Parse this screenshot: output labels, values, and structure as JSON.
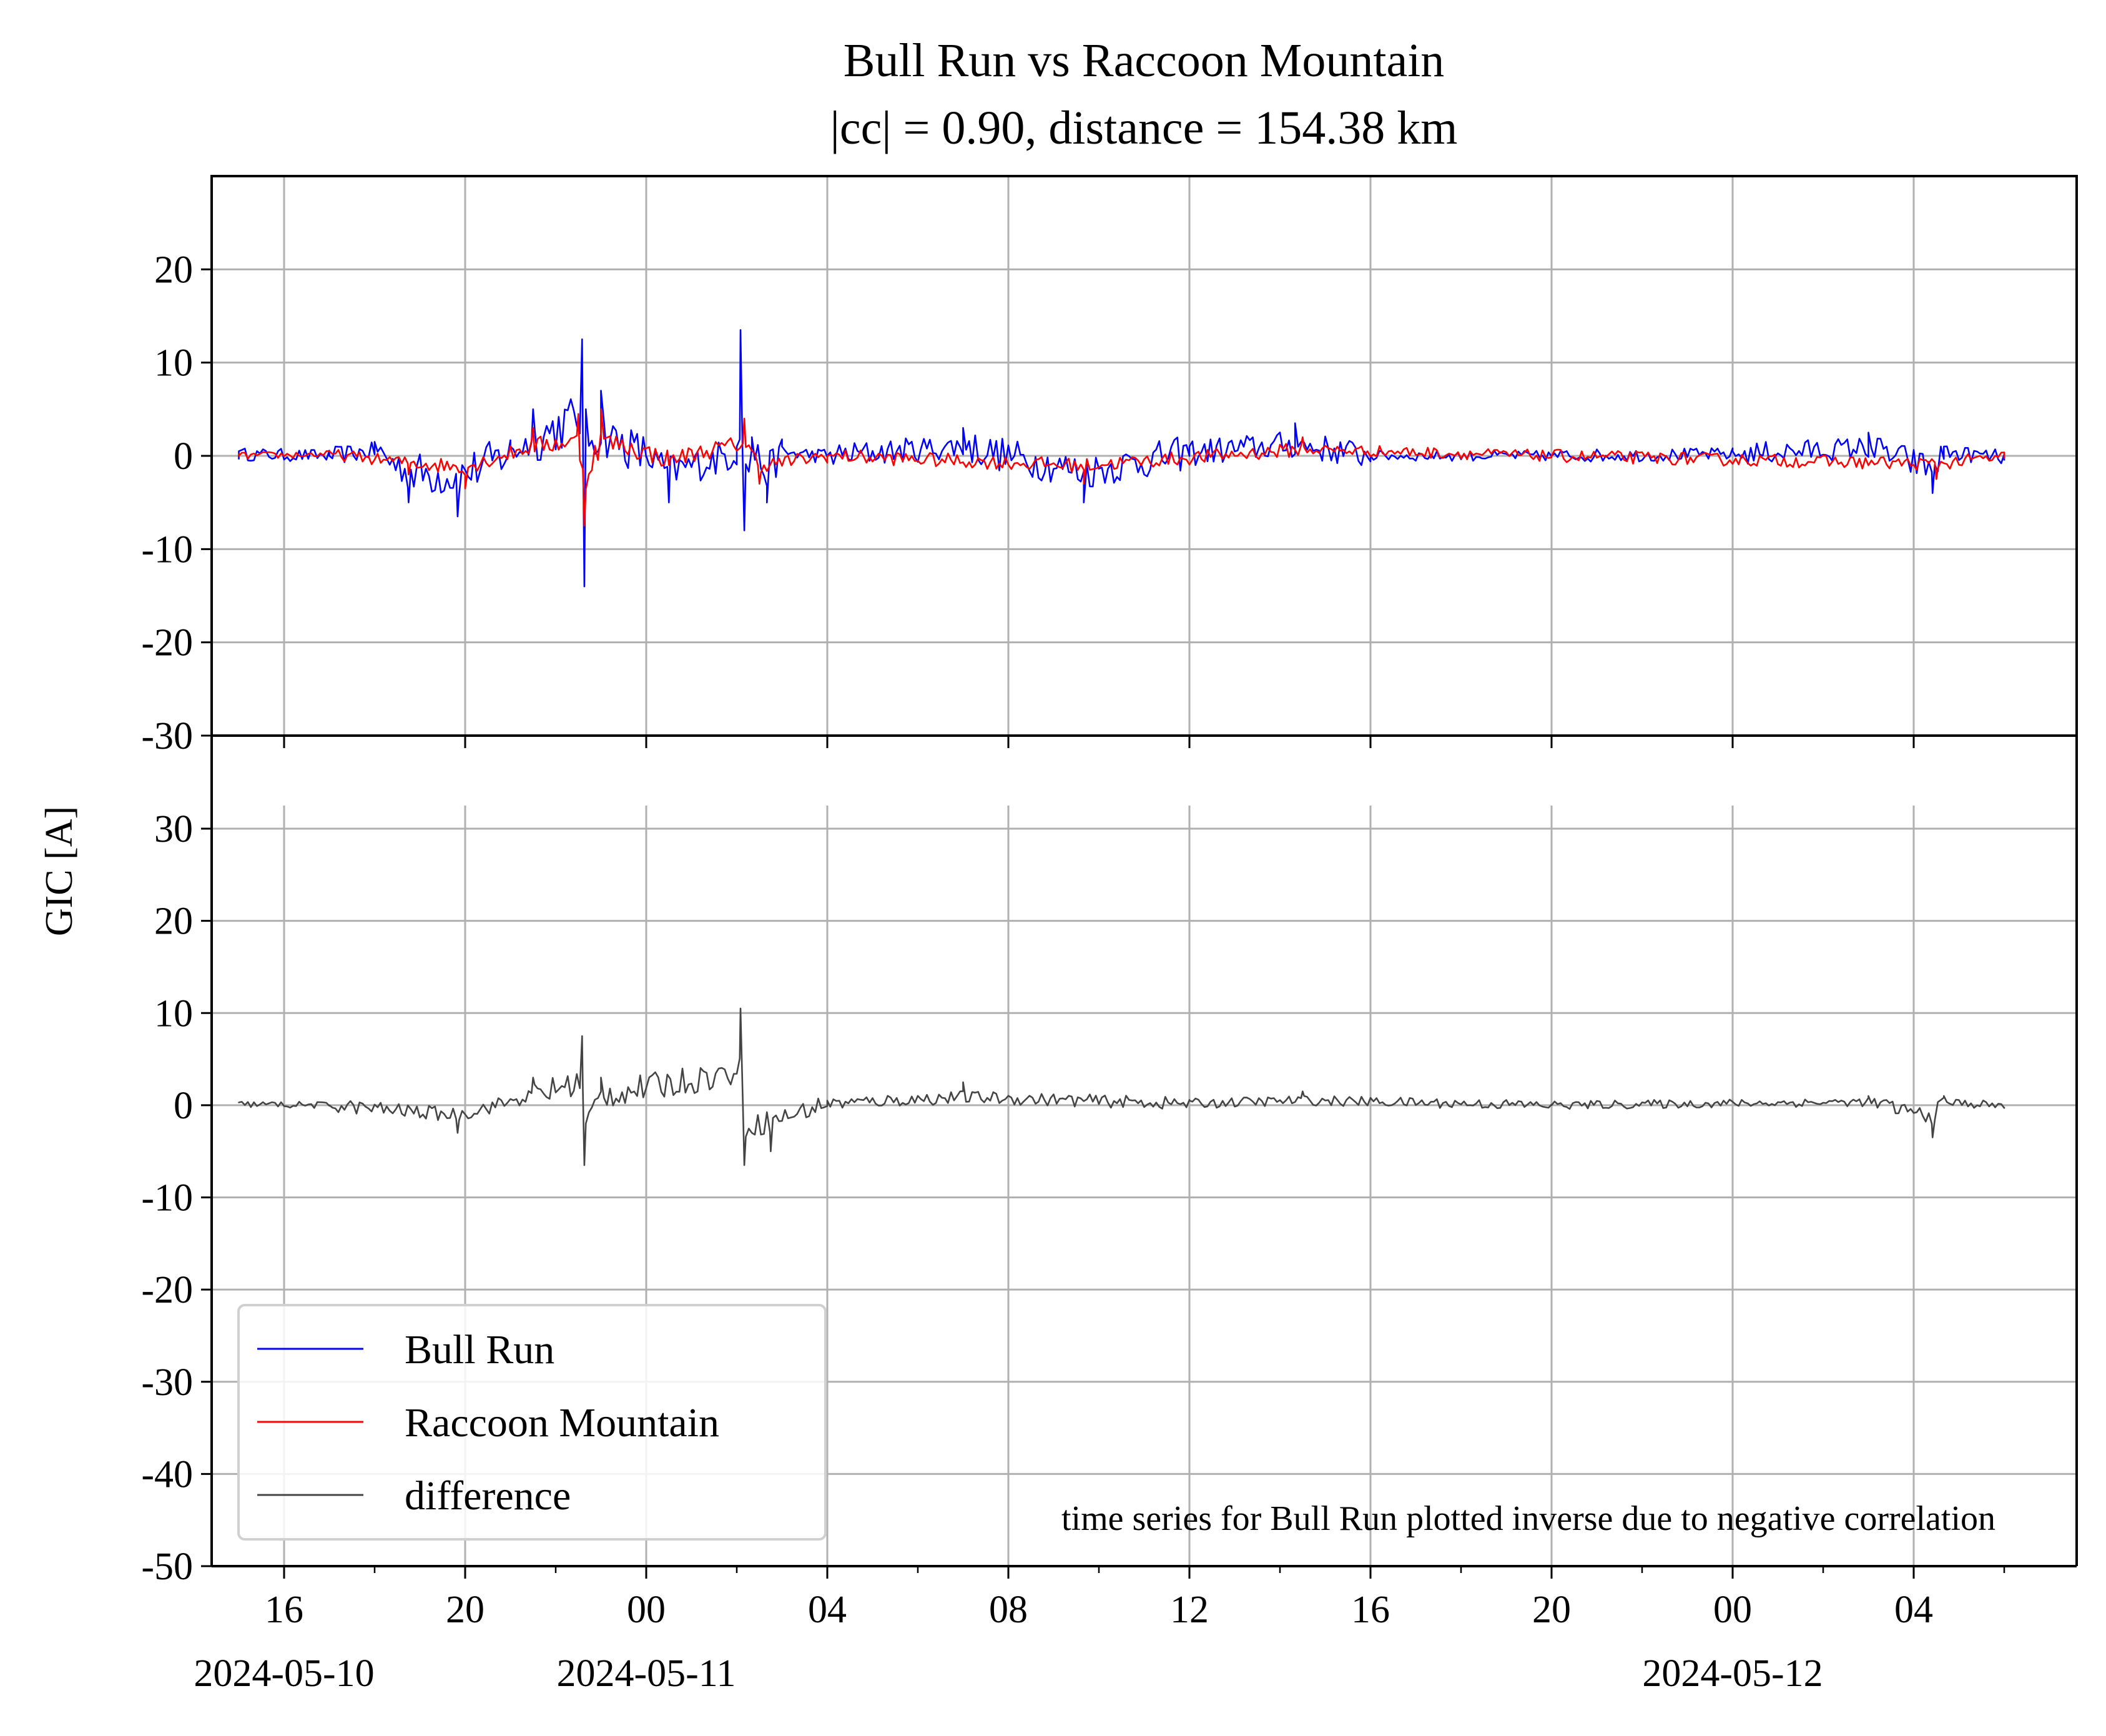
{
  "title_line1": "Bull Run vs Raccoon Mountain",
  "title_line2": "|cc| = 0.90, distance = 154.38 km",
  "ylabel": "GIC [A]",
  "annotation": "time series for Bull Run plotted inverse due to negative correlation",
  "legend": [
    "Bull Run",
    "Raccoon Mountain",
    "difference"
  ],
  "colors": {
    "bull_run": "#0000ff",
    "raccoon_mountain": "#ff0000",
    "difference": "#444444",
    "grid": "#b0b0b0"
  },
  "chart_data": [
    {
      "type": "line",
      "panel": "top",
      "ylim": [
        -30,
        30
      ],
      "yticks": [
        20,
        10,
        0,
        -10,
        -20,
        -30
      ],
      "ytick_labels": [
        "20",
        "10",
        "0",
        "-10",
        "-20",
        "-30"
      ],
      "grid": true,
      "series": [
        {
          "name": "Bull Run",
          "x": [
            "2024-05-10 15:00",
            "2024-05-10 17:00",
            "2024-05-10 18:00",
            "2024-05-10 18:45",
            "2024-05-10 19:50",
            "2024-05-10 21:00",
            "2024-05-10 21:30",
            "2024-05-10 22:35",
            "2024-05-10 22:38",
            "2024-05-10 22:40",
            "2024-05-10 23:00",
            "2024-05-11 00:00",
            "2024-05-11 00:30",
            "2024-05-11 02:00",
            "2024-05-11 02:05",
            "2024-05-11 02:10",
            "2024-05-11 02:20",
            "2024-05-11 02:40",
            "2024-05-11 03:00",
            "2024-05-11 04:00",
            "2024-05-11 07:00",
            "2024-05-11 09:40",
            "2024-05-11 12:00",
            "2024-05-11 14:20",
            "2024-05-11 16:00",
            "2024-05-11 20:00",
            "2024-05-12 00:00",
            "2024-05-12 03:00",
            "2024-05-12 04:25",
            "2024-05-12 04:40",
            "2024-05-12 06:00"
          ],
          "values": [
            0.5,
            0,
            1.5,
            -5,
            -6.5,
            1,
            5,
            12.5,
            -14,
            5,
            7,
            0,
            -5,
            1,
            13.5,
            -8,
            2,
            -5,
            1,
            0,
            3,
            -5,
            1,
            3.5,
            0,
            0,
            0.5,
            2.5,
            -4,
            1,
            -0.5
          ]
        },
        {
          "name": "Raccoon Mountain",
          "x": [
            "2024-05-10 15:00",
            "2024-05-10 17:00",
            "2024-05-10 18:45",
            "2024-05-10 20:00",
            "2024-05-10 21:30",
            "2024-05-10 22:30",
            "2024-05-10 22:38",
            "2024-05-10 23:00",
            "2024-05-11 00:30",
            "2024-05-11 02:10",
            "2024-05-11 02:30",
            "2024-05-11 04:00",
            "2024-05-11 09:40",
            "2024-05-11 14:30",
            "2024-05-11 20:00",
            "2024-05-12 04:30",
            "2024-05-12 06:00"
          ],
          "values": [
            0,
            0.5,
            -2,
            -3.5,
            3,
            4.5,
            -7.5,
            5,
            -1,
            4,
            -3,
            0,
            -3,
            2,
            0,
            -2.5,
            -0.3
          ]
        }
      ]
    },
    {
      "type": "line",
      "panel": "bottom",
      "ylim": [
        -50,
        32
      ],
      "yticks": [
        30,
        20,
        10,
        0,
        -10,
        -20,
        -30,
        -40,
        -50
      ],
      "ytick_labels": [
        "30",
        "20",
        "10",
        "0",
        "-10",
        "-20",
        "-30",
        "-40",
        "-50"
      ],
      "grid": true,
      "xtick_labels": [
        "16",
        "20",
        "00",
        "04",
        "08",
        "12",
        "16",
        "20",
        "00",
        "04"
      ],
      "xdate_labels": [
        "2024-05-10",
        "2024-05-11",
        "2024-05-12"
      ],
      "legend_position": "lower-left",
      "series": [
        {
          "name": "difference",
          "x": [
            "2024-05-10 15:00",
            "2024-05-10 17:00",
            "2024-05-10 19:50",
            "2024-05-10 21:30",
            "2024-05-10 22:35",
            "2024-05-10 22:38",
            "2024-05-10 23:00",
            "2024-05-11 02:05",
            "2024-05-11 02:10",
            "2024-05-11 02:45",
            "2024-05-11 04:00",
            "2024-05-11 07:00",
            "2024-05-11 12:00",
            "2024-05-11 14:30",
            "2024-05-11 20:00",
            "2024-05-12 03:00",
            "2024-05-12 04:25",
            "2024-05-12 04:40",
            "2024-05-12 06:00"
          ],
          "values": [
            0.3,
            0,
            -3,
            3,
            7.5,
            -6.5,
            3,
            10.5,
            -6.5,
            -5,
            0.5,
            2.5,
            0.5,
            1.5,
            0,
            1,
            -3.5,
            1,
            -0.2
          ]
        }
      ]
    }
  ]
}
